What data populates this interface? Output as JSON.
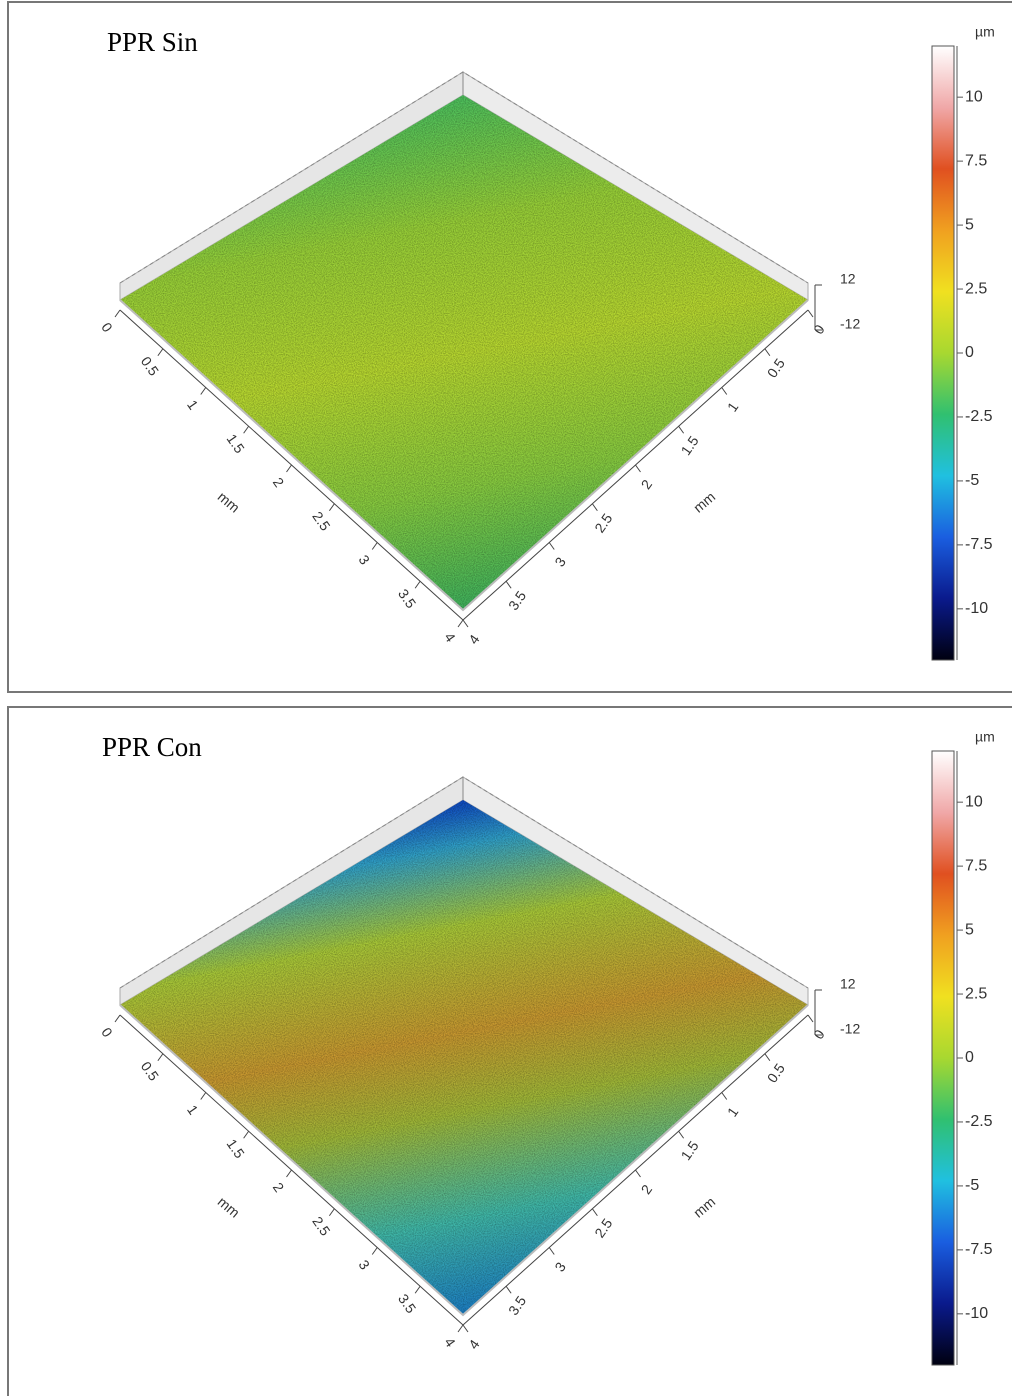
{
  "chart_data": [
    {
      "type": "surface",
      "title": "PPR Sin",
      "xlabel": "mm",
      "ylabel": "mm",
      "xlim": [
        0,
        4
      ],
      "xticks": [
        0,
        0.5,
        1,
        1.5,
        2,
        2.5,
        3,
        3.5,
        4
      ],
      "ylim": [
        0,
        4
      ],
      "yticks": [
        0,
        0.5,
        1,
        1.5,
        2,
        2.5,
        3,
        3.5,
        4
      ],
      "zlim": [
        -12,
        12
      ],
      "zticks": [
        -12,
        12
      ],
      "colorbar": {
        "unit": "µm",
        "lim": [
          -12,
          12
        ],
        "ticks": [
          10,
          7.5,
          5,
          2.5,
          0,
          -2.5,
          -5,
          -7.5,
          -10
        ],
        "colormap": [
          "#000010",
          "#0a1a8c",
          "#1a5ee0",
          "#20c0e0",
          "#30c070",
          "#a8d830",
          "#f0e020",
          "#f0a020",
          "#e05020",
          "#f0a8a8",
          "#ffffff"
        ]
      }
    },
    {
      "type": "surface",
      "title": "PPR Con",
      "xlabel": "mm",
      "ylabel": "mm",
      "xlim": [
        0,
        4
      ],
      "xticks": [
        0,
        0.5,
        1,
        1.5,
        2,
        2.5,
        3,
        3.5,
        4
      ],
      "ylim": [
        0,
        4
      ],
      "yticks": [
        0,
        0.5,
        1,
        1.5,
        2,
        2.5,
        3,
        3.5,
        4
      ],
      "zlim": [
        -12,
        12
      ],
      "zticks": [
        -12,
        12
      ],
      "colorbar": {
        "unit": "µm",
        "lim": [
          -12,
          12
        ],
        "ticks": [
          10,
          7.5,
          5,
          2.5,
          0,
          -2.5,
          -5,
          -7.5,
          -10
        ],
        "colormap": [
          "#000010",
          "#0a1a8c",
          "#1a5ee0",
          "#20c0e0",
          "#30c070",
          "#a8d830",
          "#f0e020",
          "#f0a020",
          "#e05020",
          "#f0a8a8",
          "#ffffff"
        ]
      }
    }
  ]
}
